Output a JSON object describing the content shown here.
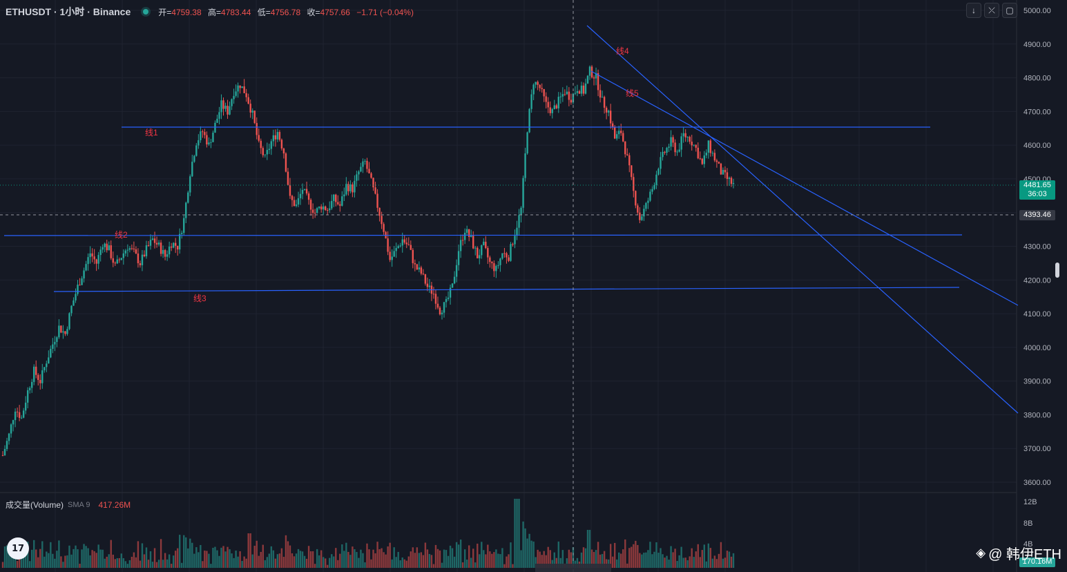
{
  "header": {
    "symbol": "ETHUSDT · 1小时 · Binance",
    "open_label": "开=",
    "open_value": "4759.38",
    "high_label": "高=",
    "high_value": "4783.44",
    "low_label": "低=",
    "low_value": "4756.78",
    "close_label": "收=",
    "close_value": "4757.66",
    "change": "−1.71 (−0.04%)"
  },
  "toolbar": {
    "down_icon": "arrow-down-icon",
    "collapse_icon": "collapse-icon",
    "restore_icon": "restore-icon"
  },
  "price_axis": {
    "ticks": [
      "5000.00",
      "4900.00",
      "4800.00",
      "4700.00",
      "4600.00",
      "4500.00",
      "4300.00",
      "4200.00",
      "4100.00",
      "4000.00",
      "3900.00",
      "3800.00",
      "3700.00",
      "3600.00"
    ]
  },
  "current_price": {
    "value": "4481.65",
    "countdown": "36:03",
    "color": "#089981"
  },
  "crosshair_price": {
    "value": "4393.46"
  },
  "volume": {
    "title": "成交量(Volume)",
    "sma_label": "SMA 9",
    "sma_value": "417.26M",
    "axis_ticks": [
      "12B",
      "8B",
      "4B"
    ],
    "last_badge": "170.16M"
  },
  "drawings": {
    "labels": [
      "线1",
      "线2",
      "线3",
      "线4",
      "线5"
    ]
  },
  "colors": {
    "background": "#151924",
    "up": "#26a69a",
    "down": "#ef5350",
    "trendline": "#2962ff",
    "label": "#f23645"
  },
  "watermark": {
    "text": "@ 韩伊ETH",
    "logo_icon": "binance-logo-icon"
  },
  "logo": {
    "text": "17"
  },
  "chart_data": {
    "type": "candlestick",
    "ylim": [
      3550,
      5040
    ],
    "closes": [
      3680,
      3740,
      3820,
      3790,
      3870,
      3930,
      3900,
      3960,
      4010,
      4060,
      4040,
      4120,
      4180,
      4230,
      4280,
      4250,
      4310,
      4290,
      4240,
      4270,
      4300,
      4280,
      4250,
      4290,
      4320,
      4300,
      4270,
      4310,
      4300,
      4380,
      4520,
      4610,
      4640,
      4600,
      4660,
      4720,
      4700,
      4760,
      4780,
      4750,
      4690,
      4600,
      4560,
      4610,
      4640,
      4580,
      4440,
      4420,
      4470,
      4430,
      4400,
      4420,
      4410,
      4440,
      4420,
      4480,
      4470,
      4520,
      4550,
      4490,
      4420,
      4350,
      4260,
      4290,
      4320,
      4300,
      4240,
      4220,
      4180,
      4160,
      4110,
      4130,
      4180,
      4290,
      4350,
      4320,
      4270,
      4300,
      4250,
      4230,
      4280,
      4270,
      4340,
      4410,
      4650,
      4790,
      4770,
      4720,
      4700,
      4730,
      4760,
      4740,
      4770,
      4760,
      4820,
      4800,
      4730,
      4700,
      4620,
      4640,
      4560,
      4460,
      4380,
      4420,
      4470,
      4540,
      4580,
      4610,
      4580,
      4630,
      4620,
      4590,
      4540,
      4600,
      4560,
      4520,
      4500,
      4482
    ],
    "volume_max": 12
  }
}
